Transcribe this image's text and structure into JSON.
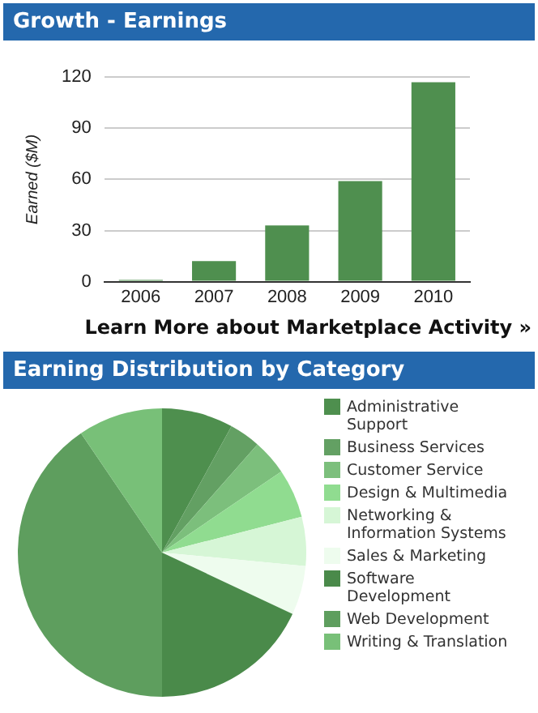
{
  "chart_data": [
    {
      "type": "bar",
      "title": "Growth - Earnings",
      "ylabel": "Earned ($M)",
      "categories": [
        "2006",
        "2007",
        "2008",
        "2009",
        "2010"
      ],
      "values": [
        1,
        12,
        33,
        59,
        117
      ],
      "color": "#4f8f4f",
      "ylim": [
        0,
        120
      ],
      "yticks": [
        0,
        30,
        60,
        90,
        120
      ],
      "grid": "y",
      "annotations": [
        "Learn More about Marketplace Activity »"
      ]
    },
    {
      "type": "pie",
      "title": "Earning Distribution by Category",
      "categories": [
        "Administrative Support",
        "Business Services",
        "Customer Service",
        "Design & Multimedia",
        "Networking & Information Systems",
        "Sales & Marketing",
        "Software Development",
        "Web Development",
        "Writing & Translation"
      ],
      "values": [
        8,
        3.5,
        4,
        5.5,
        5.5,
        5.5,
        18,
        40.5,
        9.5
      ],
      "colors": [
        "#4e8f4e",
        "#63a063",
        "#7cbf7c",
        "#90dc90",
        "#d6f6d6",
        "#eefcee",
        "#4a8a4a",
        "#5e9e5e",
        "#78c078"
      ],
      "legend": "right"
    }
  ]
}
